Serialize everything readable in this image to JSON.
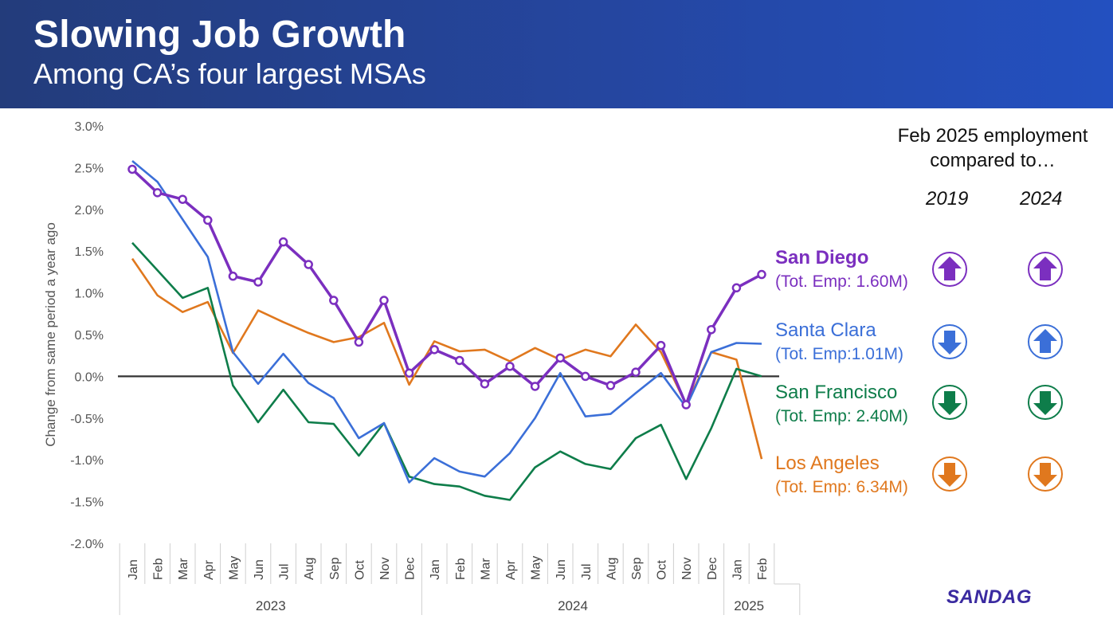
{
  "header": {
    "title": "Slowing Job Growth",
    "subtitle": "Among CA’s four largest MSAs"
  },
  "chart_data": {
    "type": "line",
    "ylabel": "Change from same period a year ago",
    "ylim": [
      -2.0,
      3.0
    ],
    "yticks": [
      "3.0%",
      "2.5%",
      "2.0%",
      "1.5%",
      "1.0%",
      "0.5%",
      "0.0%",
      "-0.5%",
      "-1.0%",
      "-1.5%",
      "-2.0%"
    ],
    "ytick_values": [
      3.0,
      2.5,
      2.0,
      1.5,
      1.0,
      0.5,
      0.0,
      -0.5,
      -1.0,
      -1.5,
      -2.0
    ],
    "categories": [
      "Jan",
      "Feb",
      "Mar",
      "Apr",
      "May",
      "Jun",
      "Jul",
      "Aug",
      "Sep",
      "Oct",
      "Nov",
      "Dec",
      "Jan",
      "Feb",
      "Mar",
      "Apr",
      "May",
      "Jun",
      "Jul",
      "Aug",
      "Sep",
      "Oct",
      "Nov",
      "Dec",
      "Jan",
      "Feb"
    ],
    "year_groups": [
      {
        "label": "2023",
        "start": 0,
        "end": 11
      },
      {
        "label": "2024",
        "start": 12,
        "end": 23
      },
      {
        "label": "2025",
        "start": 24,
        "end": 25
      }
    ],
    "grid": false,
    "zero_line": true,
    "series": [
      {
        "name": "San Diego",
        "color": "#7b2fbf",
        "markers": true,
        "values": [
          2.48,
          2.2,
          2.12,
          1.87,
          1.2,
          1.13,
          1.61,
          1.34,
          0.91,
          0.41,
          0.91,
          0.04,
          0.32,
          0.19,
          -0.09,
          0.12,
          -0.12,
          0.22,
          0.0,
          -0.11,
          0.05,
          0.37,
          -0.34,
          0.56,
          1.06,
          1.22
        ]
      },
      {
        "name": "Santa Clara",
        "color": "#3b6fd8",
        "markers": false,
        "values": [
          2.58,
          2.33,
          1.88,
          1.43,
          0.29,
          -0.09,
          0.27,
          -0.08,
          -0.26,
          -0.74,
          -0.56,
          -1.27,
          -0.98,
          -1.14,
          -1.2,
          -0.92,
          -0.5,
          0.04,
          -0.48,
          -0.45,
          -0.2,
          0.04,
          -0.37,
          0.29,
          0.4,
          0.39
        ]
      },
      {
        "name": "San Francisco",
        "color": "#0e7d4a",
        "markers": false,
        "values": [
          1.6,
          1.27,
          0.94,
          1.06,
          -0.11,
          -0.55,
          -0.16,
          -0.55,
          -0.57,
          -0.95,
          -0.56,
          -1.2,
          -1.29,
          -1.32,
          -1.43,
          -1.48,
          -1.09,
          -0.9,
          -1.05,
          -1.11,
          -0.74,
          -0.58,
          -1.23,
          -0.62,
          0.09,
          0.0
        ]
      },
      {
        "name": "Los Angeles",
        "color": "#e0781e",
        "markers": false,
        "values": [
          1.41,
          0.97,
          0.77,
          0.89,
          0.28,
          0.79,
          0.65,
          0.52,
          0.41,
          0.47,
          0.64,
          -0.1,
          0.42,
          0.3,
          0.32,
          0.18,
          0.34,
          0.2,
          0.32,
          0.24,
          0.62,
          0.29,
          -0.34,
          0.29,
          0.2,
          -0.99
        ]
      }
    ]
  },
  "panel": {
    "heading": "Feb 2025 employment compared to…",
    "col_2019": "2019",
    "col_2024": "2024",
    "rows": [
      {
        "name": "San Diego",
        "sub": "(Tot. Emp: 1.60M)",
        "color": "#7b2fbf",
        "vs_2019": "up",
        "vs_2024": "up"
      },
      {
        "name": "Santa Clara",
        "sub": "(Tot. Emp:1.01M)",
        "color": "#3b6fd8",
        "vs_2019": "down",
        "vs_2024": "up"
      },
      {
        "name": "San Francisco",
        "sub": "(Tot. Emp: 2.40M)",
        "color": "#0e7d4a",
        "vs_2019": "down",
        "vs_2024": "down"
      },
      {
        "name": "Los Angeles",
        "sub": "(Tot. Emp: 6.34M)",
        "color": "#e0781e",
        "vs_2019": "down",
        "vs_2024": "down"
      }
    ]
  },
  "logo": "SANDAG"
}
